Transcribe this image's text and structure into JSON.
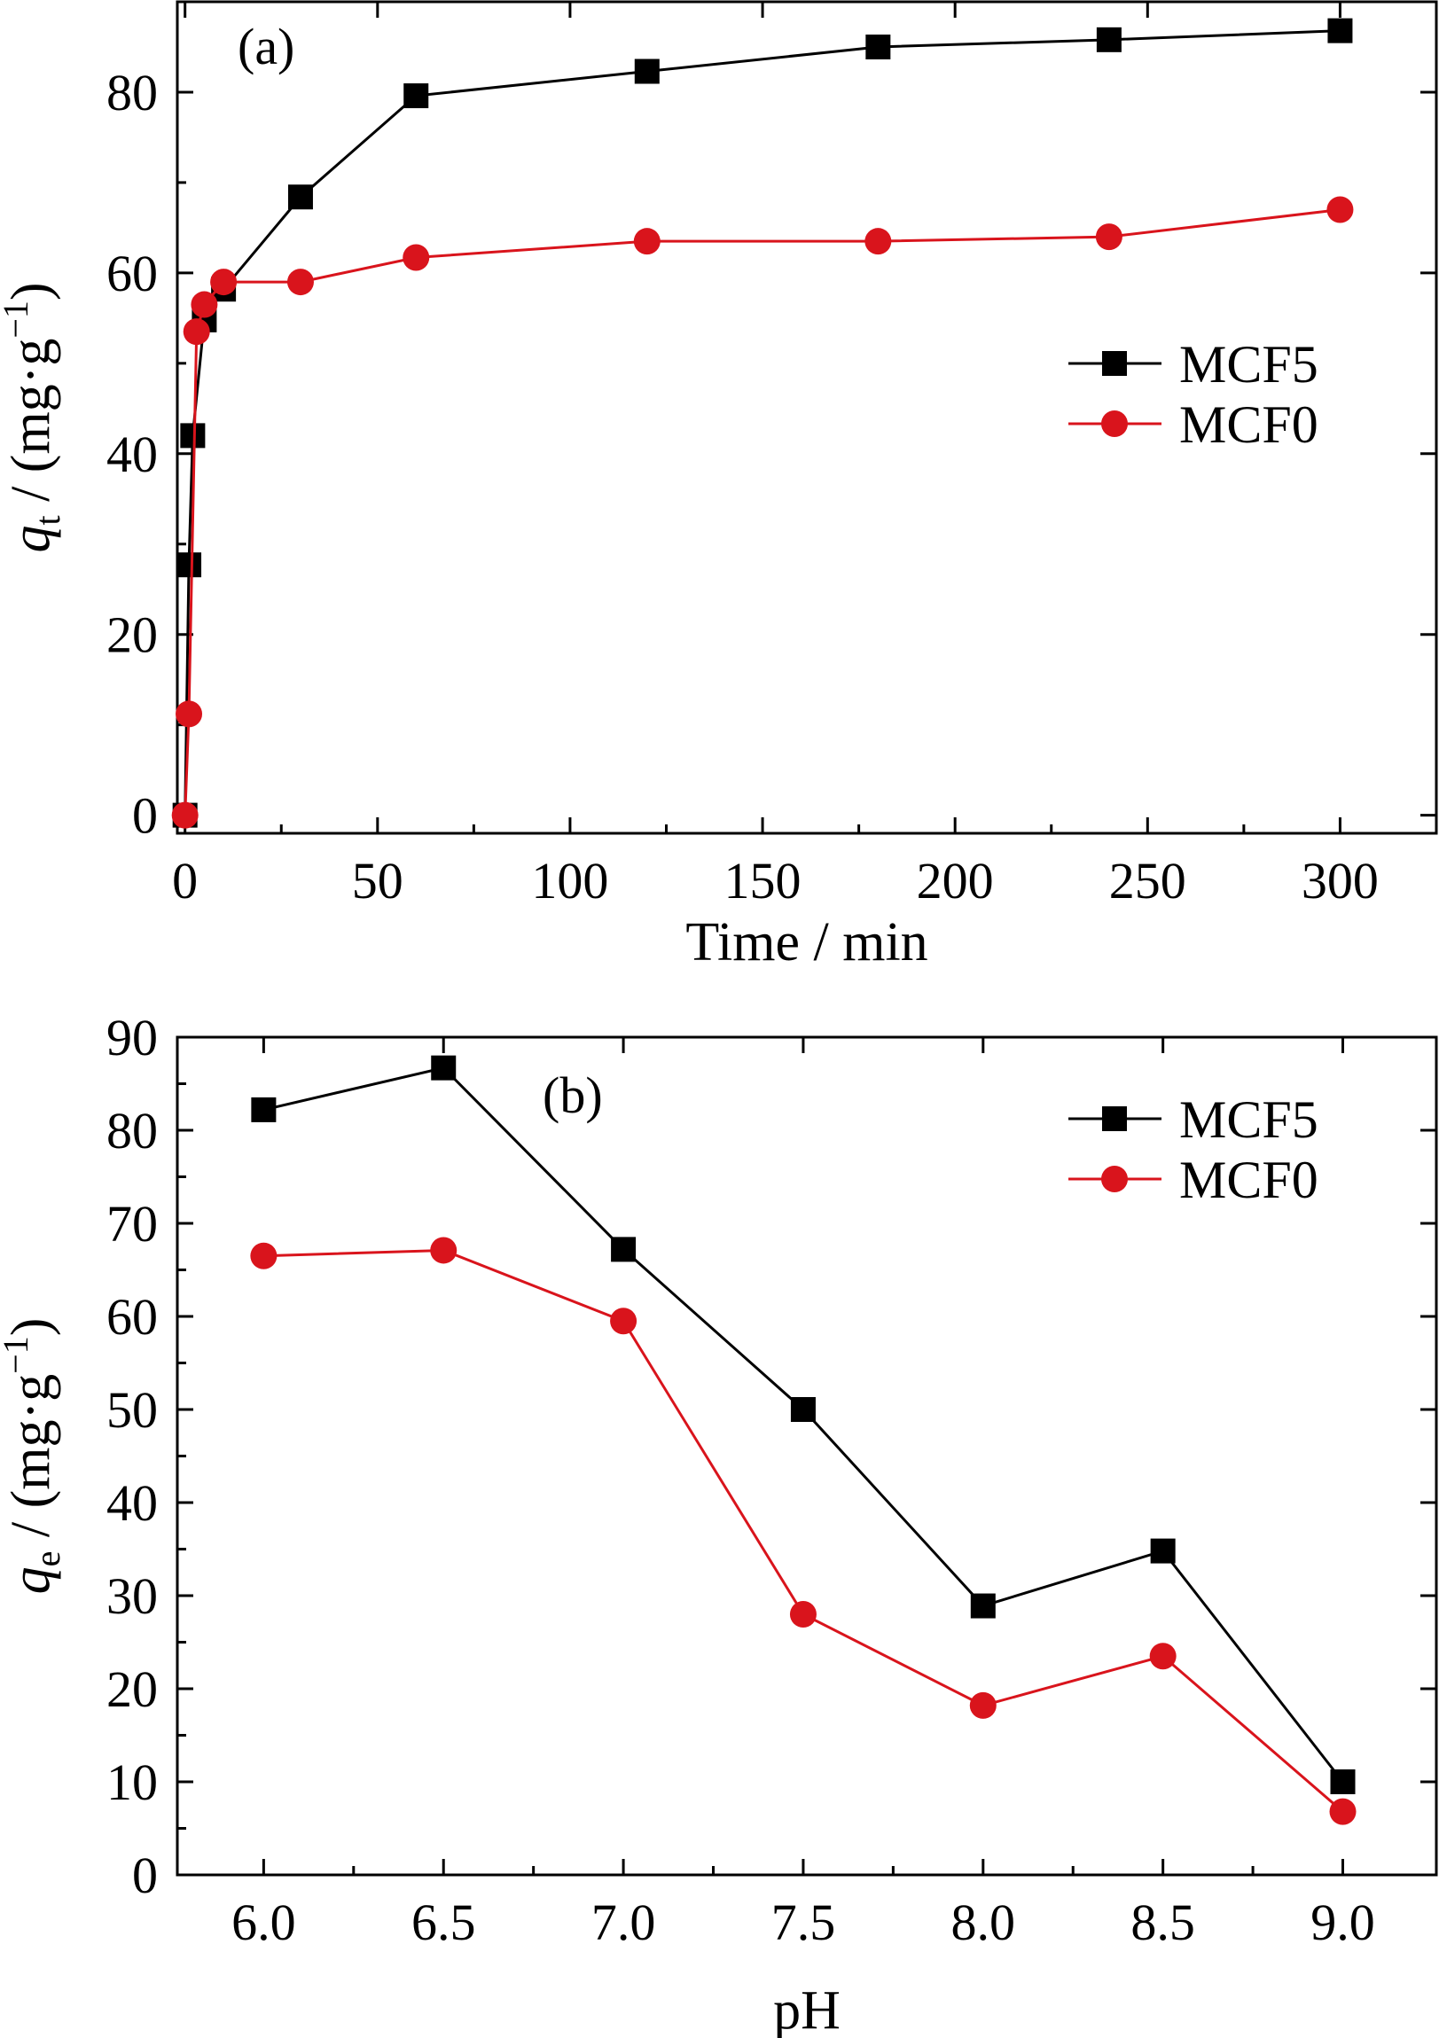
{
  "chart_data": [
    {
      "type": "line",
      "panel_label": "(a)",
      "xlabel": "Time / min",
      "ylabel": {
        "var": "q",
        "sub": "t",
        "unit": " / (mg·g",
        "sup": "−1",
        "close": ")"
      },
      "xlim": [
        -2,
        325
      ],
      "ylim": [
        -2,
        90
      ],
      "xticks": [
        0,
        50,
        100,
        150,
        200,
        250,
        300
      ],
      "xtick_labels": [
        "0",
        "50",
        "100",
        "150",
        "200",
        "250",
        "300"
      ],
      "yticks": [
        0,
        20,
        40,
        60,
        80
      ],
      "ytick_labels": [
        "0",
        "20",
        "40",
        "60",
        "80"
      ],
      "legend": {
        "placement": "middle-right"
      },
      "series": [
        {
          "name": "MCF5",
          "marker": "square",
          "color": "#000000",
          "x": [
            0,
            1,
            2,
            5,
            10,
            30,
            60,
            120,
            180,
            240,
            300
          ],
          "y": [
            0,
            27.7,
            42,
            54.8,
            58.2,
            68.4,
            79.6,
            82.3,
            85,
            85.8,
            86.8
          ]
        },
        {
          "name": "MCF0",
          "marker": "circle",
          "color": "#d9141c",
          "x": [
            0,
            1,
            3,
            5,
            10,
            30,
            60,
            120,
            180,
            240,
            300
          ],
          "y": [
            0,
            11.2,
            53.5,
            56.5,
            59,
            59,
            61.7,
            63.5,
            63.5,
            64,
            67
          ]
        }
      ]
    },
    {
      "type": "line",
      "panel_label": "(b)",
      "xlabel": "pH",
      "ylabel": {
        "var": "q",
        "sub": "e",
        "unit": " / (mg·g",
        "sup": "−1",
        "close": ")"
      },
      "xlim": [
        5.76,
        9.26
      ],
      "ylim": [
        0,
        90
      ],
      "xticks": [
        6.0,
        6.5,
        7.0,
        7.5,
        8.0,
        8.5,
        9.0
      ],
      "xtick_labels": [
        "6.0",
        "6.5",
        "7.0",
        "7.5",
        "8.0",
        "8.5",
        "9.0"
      ],
      "yticks": [
        0,
        10,
        20,
        30,
        40,
        50,
        60,
        70,
        80,
        90
      ],
      "ytick_labels": [
        "0",
        "10",
        "20",
        "30",
        "40",
        "50",
        "60",
        "70",
        "80",
        "90"
      ],
      "legend": {
        "placement": "top-right"
      },
      "series": [
        {
          "name": "MCF5",
          "marker": "square",
          "color": "#000000",
          "x": [
            6.0,
            6.5,
            7.0,
            7.5,
            8.0,
            8.5,
            9.0
          ],
          "y": [
            82.2,
            86.7,
            67.2,
            50,
            28.9,
            34.8,
            10
          ]
        },
        {
          "name": "MCF0",
          "marker": "circle",
          "color": "#d9141c",
          "x": [
            6.0,
            6.5,
            7.0,
            7.5,
            8.0,
            8.5,
            9.0
          ],
          "y": [
            66.5,
            67.1,
            59.5,
            28,
            18.2,
            23.5,
            6.8
          ]
        }
      ]
    }
  ]
}
